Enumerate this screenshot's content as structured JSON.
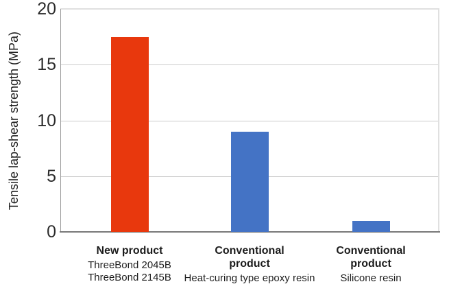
{
  "chart_data": {
    "type": "bar",
    "title": "",
    "xlabel": "",
    "ylabel": "Tensile lap-shear strength (MPa)",
    "ylim": [
      0,
      20
    ],
    "yticks": [
      0,
      5,
      10,
      15,
      20
    ],
    "grid": "horizontal",
    "legend": false,
    "categories": [
      "New product",
      "Conventional product",
      "Conventional product"
    ],
    "category_title_lines": [
      [
        "New product"
      ],
      [
        "Conventional",
        "product"
      ],
      [
        "Conventional",
        "product"
      ]
    ],
    "category_sublabels": [
      "ThreeBond 2045B\nThreeBond 2145B",
      "Heat-curing type epoxy resin",
      "Silicone resin"
    ],
    "values": [
      17.5,
      9,
      1
    ],
    "bar_colors": [
      "#e8380d",
      "#4473c5",
      "#4473c5"
    ],
    "colors": {
      "new_product_bar": "#e8380d",
      "conventional_bar": "#4473c5",
      "gridline": "#cacaca",
      "axis": "#787878",
      "text": "#1c1c1c"
    }
  }
}
